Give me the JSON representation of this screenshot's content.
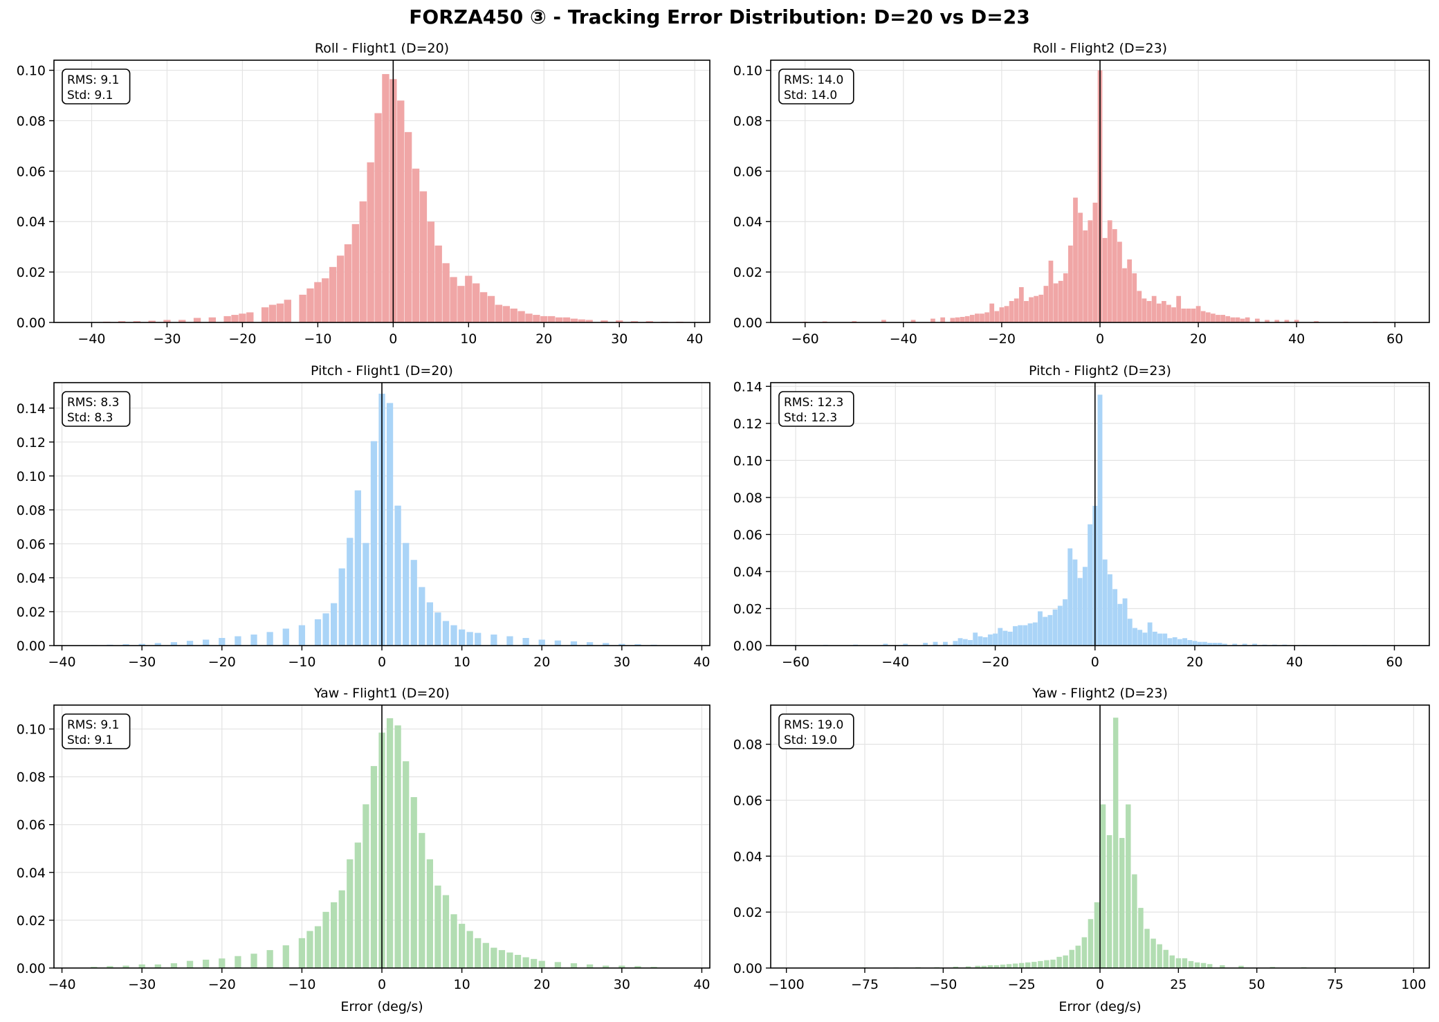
{
  "figure_title": "FORZA450 ③ - Tracking Error Distribution: D=20 vs D=23",
  "chart_data": [
    {
      "type": "bar",
      "title": "Roll - Flight1 (D=20)",
      "xlabel": "",
      "ylabel": "",
      "color": "#f0a6a6",
      "xlim": [
        -45,
        42
      ],
      "ylim": [
        0,
        0.104
      ],
      "xticks": [
        -40,
        -30,
        -20,
        -10,
        0,
        10,
        20,
        30,
        40
      ],
      "yticks": [
        0.0,
        0.02,
        0.04,
        0.06,
        0.08,
        0.1
      ],
      "ytick_decimals": 2,
      "stats": [
        "RMS: 9.1",
        "Std: 9.1"
      ],
      "bin_width": 0.95,
      "x": [
        -38,
        -36,
        -34,
        -32,
        -30,
        -28,
        -26,
        -24,
        -22,
        -21,
        -20,
        -19,
        -17,
        -16,
        -15,
        -14,
        -12,
        -11,
        -10,
        -9,
        -8,
        -7,
        -6,
        -5,
        -4,
        -3,
        -2,
        -1,
        0,
        1,
        2,
        3,
        4,
        5,
        6,
        7,
        8,
        9,
        10,
        11,
        12,
        13,
        14,
        15,
        16,
        17,
        18,
        19,
        20,
        21,
        22,
        23,
        24,
        25,
        26,
        28,
        30,
        32,
        34,
        36,
        38
      ],
      "values": [
        0.0003,
        0.0005,
        0.0005,
        0.0007,
        0.001,
        0.001,
        0.0018,
        0.002,
        0.0025,
        0.003,
        0.0035,
        0.004,
        0.006,
        0.007,
        0.0075,
        0.009,
        0.011,
        0.0135,
        0.016,
        0.0175,
        0.022,
        0.0265,
        0.031,
        0.039,
        0.048,
        0.0635,
        0.083,
        0.0985,
        0.0965,
        0.088,
        0.0755,
        0.061,
        0.052,
        0.04,
        0.0305,
        0.0235,
        0.018,
        0.0145,
        0.0185,
        0.0155,
        0.012,
        0.0105,
        0.007,
        0.0065,
        0.0055,
        0.0045,
        0.0035,
        0.003,
        0.0025,
        0.0025,
        0.002,
        0.002,
        0.0015,
        0.0012,
        0.001,
        0.0008,
        0.0008,
        0.0005,
        0.0005,
        0.0003,
        0.0003
      ]
    },
    {
      "type": "bar",
      "title": "Roll - Flight2 (D=23)",
      "xlabel": "",
      "ylabel": "",
      "color": "#f0a6a6",
      "xlim": [
        -67,
        67
      ],
      "ylim": [
        0,
        0.104
      ],
      "xticks": [
        -60,
        -40,
        -20,
        0,
        20,
        40,
        60
      ],
      "yticks": [
        0.0,
        0.02,
        0.04,
        0.06,
        0.08,
        0.1
      ],
      "ytick_decimals": 2,
      "stats": [
        "RMS: 14.0",
        "Std: 14.0"
      ],
      "bin_width": 0.95,
      "x": [
        -60,
        -56,
        -50,
        -44,
        -38,
        -34,
        -32,
        -30,
        -29,
        -28,
        -27,
        -26,
        -25,
        -24,
        -23,
        -22,
        -21,
        -20,
        -19,
        -18,
        -17,
        -16,
        -15,
        -14,
        -13,
        -12,
        -11,
        -10,
        -9,
        -8,
        -7,
        -6,
        -5,
        -4,
        -3,
        -2,
        -1,
        0,
        1,
        2,
        3,
        4,
        5,
        6,
        7,
        8,
        9,
        10,
        11,
        12,
        13,
        14,
        15,
        16,
        17,
        18,
        19,
        20,
        21,
        22,
        23,
        24,
        25,
        26,
        27,
        28,
        29,
        30,
        32,
        34,
        36,
        38,
        40,
        44,
        50,
        56
      ],
      "values": [
        0.0003,
        0.0004,
        0.0005,
        0.001,
        0.001,
        0.0015,
        0.002,
        0.0018,
        0.002,
        0.0022,
        0.0025,
        0.003,
        0.0035,
        0.0035,
        0.004,
        0.0075,
        0.0045,
        0.006,
        0.0065,
        0.0085,
        0.0095,
        0.014,
        0.0085,
        0.01,
        0.0105,
        0.011,
        0.0145,
        0.0245,
        0.0155,
        0.0165,
        0.0195,
        0.0305,
        0.0495,
        0.0435,
        0.0365,
        0.0405,
        0.0475,
        0.1,
        0.0335,
        0.0405,
        0.037,
        0.032,
        0.0215,
        0.025,
        0.0195,
        0.0125,
        0.0095,
        0.0085,
        0.0105,
        0.0075,
        0.0085,
        0.007,
        0.006,
        0.0105,
        0.0055,
        0.0055,
        0.0055,
        0.0065,
        0.0045,
        0.004,
        0.0035,
        0.003,
        0.003,
        0.0025,
        0.002,
        0.002,
        0.0015,
        0.002,
        0.0015,
        0.001,
        0.001,
        0.001,
        0.001,
        0.0005,
        0.0003,
        0.0003
      ]
    },
    {
      "type": "bar",
      "title": "Pitch - Flight1 (D=20)",
      "xlabel": "",
      "ylabel": "",
      "color": "#aad4f7",
      "xlim": [
        -41,
        41
      ],
      "ylim": [
        0,
        0.155
      ],
      "xticks": [
        -40,
        -30,
        -20,
        -10,
        0,
        10,
        20,
        30,
        40
      ],
      "yticks": [
        0.0,
        0.02,
        0.04,
        0.06,
        0.08,
        0.1,
        0.12,
        0.14
      ],
      "ytick_decimals": 2,
      "stats": [
        "RMS: 8.3",
        "Std: 8.3"
      ],
      "bin_width": 0.8,
      "x": [
        -36,
        -34,
        -32,
        -30,
        -28,
        -26,
        -24,
        -22,
        -20,
        -18,
        -16,
        -14,
        -12,
        -10,
        -8,
        -7,
        -6,
        -5,
        -4,
        -3,
        -2,
        -1,
        0,
        1,
        2,
        3,
        4,
        5,
        6,
        7,
        8,
        9,
        10,
        11,
        12,
        14,
        16,
        18,
        20,
        22,
        24,
        26,
        28,
        30,
        32,
        34
      ],
      "values": [
        0.0003,
        0.0005,
        0.0008,
        0.001,
        0.0015,
        0.002,
        0.0028,
        0.0035,
        0.0045,
        0.0055,
        0.0065,
        0.008,
        0.01,
        0.012,
        0.0155,
        0.019,
        0.025,
        0.0455,
        0.0635,
        0.0915,
        0.0605,
        0.1205,
        0.1485,
        0.143,
        0.0825,
        0.0605,
        0.0505,
        0.0345,
        0.0255,
        0.0195,
        0.0145,
        0.012,
        0.0095,
        0.008,
        0.0075,
        0.0065,
        0.0055,
        0.0045,
        0.0035,
        0.003,
        0.0025,
        0.002,
        0.0015,
        0.001,
        0.0008,
        0.0005
      ]
    },
    {
      "type": "bar",
      "title": "Pitch - Flight2 (D=23)",
      "xlabel": "",
      "ylabel": "",
      "color": "#aad4f7",
      "xlim": [
        -65,
        67
      ],
      "ylim": [
        0,
        0.142
      ],
      "xticks": [
        -60,
        -40,
        -20,
        0,
        20,
        40,
        60
      ],
      "yticks": [
        0.0,
        0.02,
        0.04,
        0.06,
        0.08,
        0.1,
        0.12,
        0.14
      ],
      "ytick_decimals": 2,
      "stats": [
        "RMS: 12.3",
        "Std: 12.3"
      ],
      "bin_width": 0.95,
      "x": [
        -60,
        -54,
        -48,
        -42,
        -38,
        -34,
        -32,
        -30,
        -28,
        -27,
        -26,
        -25,
        -24,
        -23,
        -22,
        -21,
        -20,
        -19,
        -18,
        -17,
        -16,
        -15,
        -14,
        -13,
        -12,
        -11,
        -10,
        -9,
        -8,
        -7,
        -6,
        -5,
        -4,
        -3,
        -2,
        -1,
        0,
        1,
        2,
        3,
        4,
        5,
        6,
        7,
        8,
        9,
        10,
        11,
        12,
        13,
        14,
        15,
        16,
        17,
        18,
        19,
        20,
        21,
        22,
        23,
        24,
        25,
        26,
        28,
        30,
        32,
        34,
        36,
        38,
        42,
        48,
        54
      ],
      "values": [
        0.0003,
        0.0004,
        0.0005,
        0.001,
        0.001,
        0.0015,
        0.002,
        0.002,
        0.0025,
        0.004,
        0.0035,
        0.003,
        0.007,
        0.005,
        0.0045,
        0.006,
        0.0065,
        0.0095,
        0.008,
        0.0075,
        0.0105,
        0.011,
        0.011,
        0.012,
        0.0125,
        0.0185,
        0.0155,
        0.0165,
        0.0195,
        0.0215,
        0.025,
        0.0525,
        0.0465,
        0.0365,
        0.0425,
        0.0655,
        0.0755,
        0.1355,
        0.0465,
        0.0385,
        0.0305,
        0.0225,
        0.0255,
        0.0145,
        0.0095,
        0.0085,
        0.007,
        0.0125,
        0.0075,
        0.0065,
        0.0065,
        0.004,
        0.0045,
        0.0035,
        0.004,
        0.003,
        0.0025,
        0.002,
        0.002,
        0.0015,
        0.0015,
        0.0015,
        0.001,
        0.001,
        0.001,
        0.001,
        0.0005,
        0.0005,
        0.0005,
        0.0003,
        0.0003,
        0.0003
      ]
    },
    {
      "type": "bar",
      "title": "Yaw - Flight1 (D=20)",
      "xlabel": "Error (deg/s)",
      "ylabel": "",
      "color": "#b2ddb2",
      "xlim": [
        -41,
        41
      ],
      "ylim": [
        0,
        0.11
      ],
      "xticks": [
        -40,
        -30,
        -20,
        -10,
        0,
        10,
        20,
        30,
        40
      ],
      "yticks": [
        0.0,
        0.02,
        0.04,
        0.06,
        0.08,
        0.1
      ],
      "ytick_decimals": 2,
      "stats": [
        "RMS: 9.1",
        "Std: 9.1"
      ],
      "bin_width": 0.8,
      "x": [
        -36,
        -34,
        -32,
        -30,
        -28,
        -26,
        -24,
        -22,
        -20,
        -18,
        -16,
        -14,
        -12,
        -10,
        -9,
        -8,
        -7,
        -6,
        -5,
        -4,
        -3,
        -2,
        -1,
        0,
        1,
        2,
        3,
        4,
        5,
        6,
        7,
        8,
        9,
        10,
        11,
        12,
        13,
        14,
        15,
        16,
        17,
        18,
        19,
        20,
        22,
        24,
        26,
        28,
        30,
        32,
        34
      ],
      "values": [
        0.0005,
        0.0008,
        0.001,
        0.0015,
        0.0015,
        0.002,
        0.003,
        0.0035,
        0.004,
        0.005,
        0.006,
        0.0075,
        0.0095,
        0.0125,
        0.0155,
        0.0175,
        0.0235,
        0.0275,
        0.0325,
        0.0455,
        0.0525,
        0.0685,
        0.0845,
        0.0985,
        0.1045,
        0.1015,
        0.0865,
        0.0715,
        0.0565,
        0.0455,
        0.0345,
        0.0305,
        0.0225,
        0.0185,
        0.0155,
        0.0125,
        0.0105,
        0.0085,
        0.0075,
        0.0065,
        0.0055,
        0.0045,
        0.0038,
        0.003,
        0.0025,
        0.002,
        0.0015,
        0.001,
        0.001,
        0.0008,
        0.0005
      ]
    },
    {
      "type": "bar",
      "title": "Yaw - Flight2 (D=23)",
      "xlabel": "Error (deg/s)",
      "ylabel": "",
      "color": "#b2ddb2",
      "xlim": [
        -105,
        105
      ],
      "ylim": [
        0,
        0.094
      ],
      "xticks": [
        -100,
        -75,
        -50,
        -25,
        0,
        25,
        50,
        75,
        100
      ],
      "yticks": [
        0.0,
        0.02,
        0.04,
        0.06,
        0.08
      ],
      "ytick_decimals": 2,
      "stats": [
        "RMS: 19.0",
        "Std: 19.0"
      ],
      "bin_width": 1.65,
      "x": [
        -95,
        -85,
        -75,
        -65,
        -58,
        -52,
        -46,
        -42,
        -39,
        -37,
        -35,
        -33,
        -31,
        -29,
        -27,
        -25,
        -23,
        -21,
        -19,
        -17,
        -15,
        -13,
        -11,
        -9,
        -7,
        -5,
        -3,
        -1,
        1,
        3,
        5,
        7,
        9,
        11,
        13,
        15,
        17,
        19,
        21,
        23,
        25,
        27,
        29,
        31,
        33,
        35,
        39,
        45,
        55,
        65,
        75,
        85,
        95
      ],
      "values": [
        0.0001,
        0.0001,
        0.0002,
        0.0002,
        0.0003,
        0.0003,
        0.0005,
        0.0006,
        0.0008,
        0.0008,
        0.001,
        0.001,
        0.0012,
        0.0014,
        0.0016,
        0.0018,
        0.002,
        0.0022,
        0.0025,
        0.0028,
        0.003,
        0.004,
        0.0045,
        0.0065,
        0.008,
        0.011,
        0.0175,
        0.0235,
        0.0585,
        0.0475,
        0.0895,
        0.0465,
        0.0585,
        0.0335,
        0.0215,
        0.014,
        0.0105,
        0.0085,
        0.0065,
        0.0045,
        0.0035,
        0.0035,
        0.0025,
        0.002,
        0.0018,
        0.0014,
        0.001,
        0.0008,
        0.0004,
        0.0003,
        0.0002,
        0.0001,
        0.0001
      ]
    }
  ]
}
